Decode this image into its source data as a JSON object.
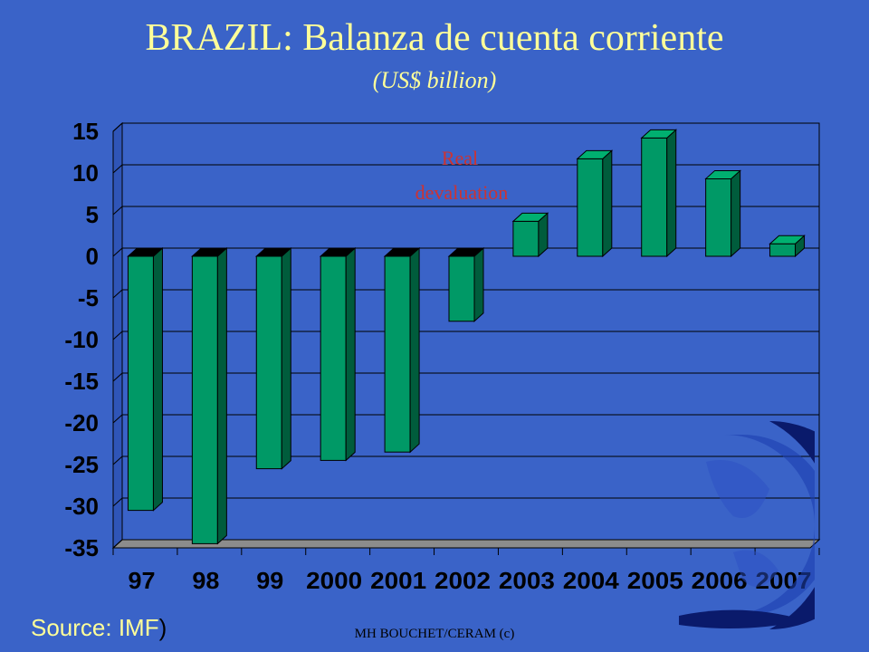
{
  "slide": {
    "title": "BRAZIL: Balanza de cuenta corriente",
    "subtitle": "(US$ billion)",
    "source_label": "Source: IMF",
    "source_paren": ")",
    "footer": "MH BOUCHET/CERAM (c)"
  },
  "colors": {
    "background": "#3a63c8",
    "title": "#ffff99",
    "bar_front": "#009966",
    "bar_top": "#00b070",
    "bar_side": "#005c3c",
    "negative_cap": "#000000",
    "plot_area": "#3a63c8",
    "annotation": "#cc3333"
  },
  "decoration": {
    "globe": "globe-icon"
  },
  "chart_data": {
    "type": "bar",
    "title": "BRAZIL: Balanza de cuenta corriente",
    "subtitle": "(US$ billion)",
    "categories": [
      "97",
      "98",
      "99",
      "2000",
      "2001",
      "2002",
      "2003",
      "2004",
      "2005",
      "2006",
      "2007"
    ],
    "values": [
      -30.5,
      -34.5,
      -25.5,
      -24.5,
      -23.5,
      -7.8,
      4.2,
      11.7,
      14.2,
      9.3,
      1.5
    ],
    "ylim": [
      -35,
      15
    ],
    "yticks": [
      "15",
      "10",
      "5",
      "0",
      "-5",
      "-10",
      "-15",
      "-20",
      "-25",
      "-30",
      "-35"
    ],
    "annotation": {
      "line1": "Real",
      "line2": "devaluation"
    },
    "grid": true,
    "legend": "none"
  }
}
